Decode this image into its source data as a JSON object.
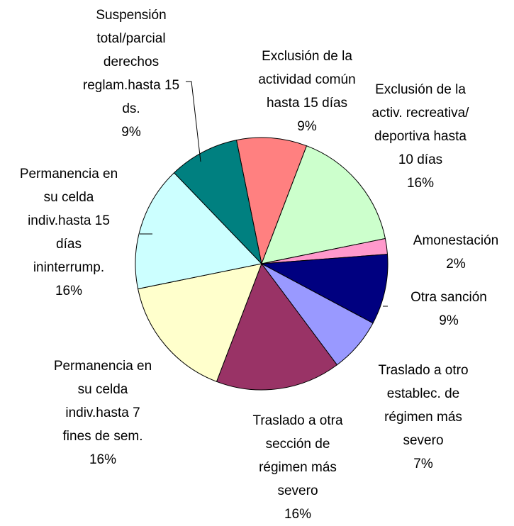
{
  "chart_data": {
    "type": "pie",
    "categories": [
      [
        "Exclusión de la",
        "actividad común",
        "hasta 15 días"
      ],
      [
        "Exclusión de la",
        "activ. recreativa/",
        "deportiva hasta",
        "10 días"
      ],
      [
        "Amonestación"
      ],
      [
        "Otra sanción"
      ],
      [
        "Traslado a otro",
        "establec. de",
        "régimen más",
        "severo"
      ],
      [
        "Traslado a otra",
        "sección de",
        "régimen más",
        "severo"
      ],
      [
        "Permanencia en",
        "su celda",
        "indiv.hasta 7",
        "fines de sem."
      ],
      [
        "Permanencia en",
        "su celda",
        "indiv.hasta 15",
        "días",
        "ininterrump."
      ],
      [
        "Suspensión",
        "total/parcial",
        "derechos",
        "reglam.hasta 15",
        "ds."
      ]
    ],
    "values": [
      9,
      16,
      2,
      9,
      7,
      16,
      16,
      16,
      9
    ],
    "value_labels": [
      "9%",
      "16%",
      "2%",
      "9%",
      "7%",
      "16%",
      "16%",
      "16%",
      "9%"
    ],
    "colors": [
      "#ff8080",
      "#ccffcc",
      "#ff99cc",
      "#000080",
      "#9999ff",
      "#993366",
      "#ffffcc",
      "#ccffff",
      "#008080"
    ]
  }
}
